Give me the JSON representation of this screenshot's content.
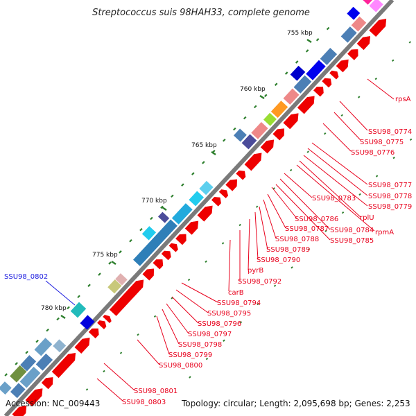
{
  "title": "Streptococcus suis 98HAH33, complete genome",
  "kbp_labels": [
    "755 kbp",
    "760 kbp",
    "765 kbp",
    "770 kbp",
    "775 kbp",
    "780 kbp"
  ],
  "gene_labels": [
    "rpsA",
    "SSU98_0774",
    "SSU98_0775",
    "SSU98_0776",
    "SSU98_0777",
    "SSU98_0778",
    "SSU98_0779",
    "rplU",
    "rpmA",
    "SSU98_0783",
    "SSU98_0784",
    "SSU98_0785",
    "SSU98_0786",
    "SSU98_0787",
    "SSU98_0788",
    "SSU98_0789",
    "SSU98_0790",
    "pyrB",
    "SSU98_0792",
    "carB",
    "SSU98_0794",
    "SSU98_0795",
    "SSU98_0796",
    "SSU98_0797",
    "SSU98_0798",
    "SSU98_0799",
    "SSU98_0800",
    "SSU98_0801",
    "SSU98_0802",
    "SSU98_0803"
  ],
  "colors": {
    "gene_label": "#e8001c",
    "highlight_label": "#1a1adf",
    "backbone": "#888888",
    "tick": "#2d7f2d"
  },
  "footer": {
    "accession": "Accession: NC_009443",
    "topology": "Topology: circular; Length: 2,095,698 bp; Genes: 2,253"
  }
}
